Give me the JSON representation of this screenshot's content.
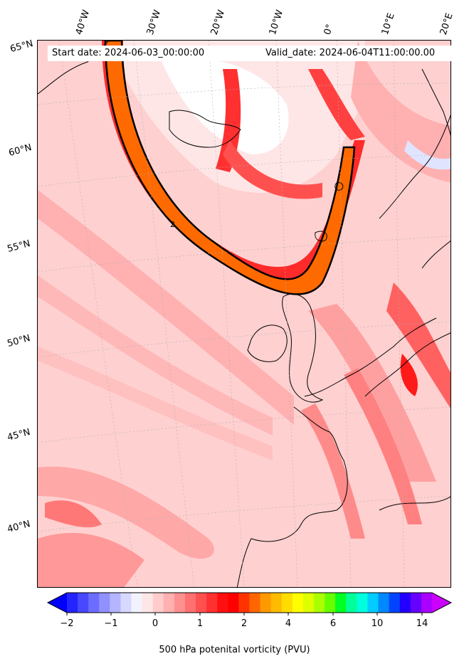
{
  "header": {
    "start_date": "Start date: 2024-06-03_00:00:00",
    "valid_date": "Valid_date: 2024-06-04T11:00:00.00"
  },
  "axes": {
    "lon_labels": [
      "40°W",
      "30°W",
      "20°W",
      "10°W",
      "0°",
      "10°E",
      "20°E"
    ],
    "lat_labels": [
      "65°N",
      "60°N",
      "55°N",
      "50°N",
      "45°N",
      "40°N"
    ]
  },
  "contour_label": "2",
  "colorbar": {
    "title": "500 hPa potenital vorticity (PVU)",
    "tick_labels": [
      "−2",
      "−1",
      "0",
      "1",
      "2",
      "4",
      "6",
      "10",
      "14"
    ],
    "colors": [
      "#0000ff",
      "#2424ff",
      "#4848ff",
      "#6c6cff",
      "#9090ff",
      "#b4b4ff",
      "#d8d8ff",
      "#f2f2ff",
      "#ffe6e6",
      "#ffcccc",
      "#ffb0b0",
      "#ff9090",
      "#ff7070",
      "#ff5050",
      "#ff3030",
      "#ff1010",
      "#ff0000",
      "#ff3300",
      "#ff6600",
      "#ff9900",
      "#ffbb00",
      "#ffdd00",
      "#ffff00",
      "#ddff00",
      "#aaff00",
      "#66ff00",
      "#00ff22",
      "#00ff99",
      "#00ffdd",
      "#00ccff",
      "#0088ff",
      "#0044ff",
      "#2200ff",
      "#6600ff",
      "#aa00ff",
      "#cc00ff"
    ]
  }
}
